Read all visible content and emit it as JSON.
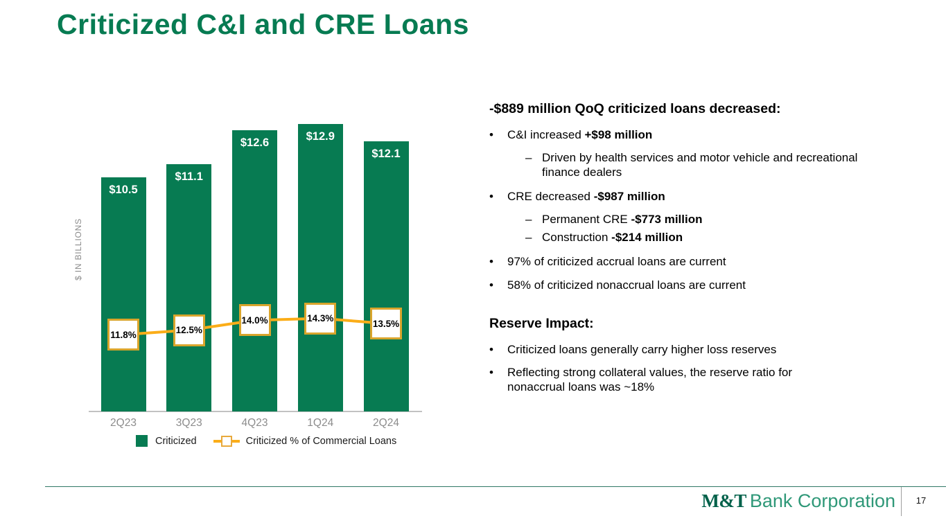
{
  "slide": {
    "title": "Criticized C&I and CRE Loans",
    "page_number": "17",
    "footer_logo": {
      "mt": "M&T",
      "rest": "Bank Corporation"
    }
  },
  "colors": {
    "brand_green": "#077B52",
    "gold_line": "#FBAD18",
    "gold_marker_border": "#D9A52C",
    "axis_gray": "#C2C2C2",
    "label_gray": "#8C8C8C",
    "footer_line_green": "#2F7865"
  },
  "chart_data": {
    "type": "bar",
    "subtype": "bar-with-line-overlay",
    "categories": [
      "2Q23",
      "3Q23",
      "4Q23",
      "1Q24",
      "2Q24"
    ],
    "series": [
      {
        "name": "Criticized",
        "type": "bar",
        "unit": "$ billions",
        "values": [
          10.5,
          11.1,
          12.6,
          12.9,
          12.1
        ],
        "labels": [
          "$10.5",
          "$11.1",
          "$12.6",
          "$12.9",
          "$12.1"
        ]
      },
      {
        "name": "Criticized % of Commercial Loans",
        "type": "line",
        "unit": "%",
        "values": [
          11.8,
          12.5,
          14.0,
          14.3,
          13.5
        ],
        "labels": [
          "11.8%",
          "12.5%",
          "14.0%",
          "14.3%",
          "13.5%"
        ]
      }
    ],
    "title": "",
    "xlabel": "",
    "ylabel": "$ IN BILLIONS",
    "ylim": [
      0,
      13.8
    ],
    "grid": false,
    "legend_position": "bottom"
  },
  "right_panel": {
    "sections": [
      {
        "heading": "-$889 million QoQ criticized loans decreased:",
        "items": [
          {
            "level": "bullet",
            "segments": [
              {
                "t": "C&I increased "
              },
              {
                "t": "+$98 million",
                "b": true
              }
            ]
          },
          {
            "level": "dash",
            "segments": [
              {
                "t": "Driven by health services and motor vehicle and recreational\nfinance dealers"
              }
            ]
          },
          {
            "level": "bullet",
            "segments": [
              {
                "t": "CRE decreased "
              },
              {
                "t": "-$987 million",
                "b": true
              }
            ]
          },
          {
            "level": "dash",
            "segments": [
              {
                "t": "Permanent CRE "
              },
              {
                "t": "-$773 million",
                "b": true
              }
            ]
          },
          {
            "level": "dash",
            "segments": [
              {
                "t": "Construction "
              },
              {
                "t": "-$214 million",
                "b": true
              }
            ]
          },
          {
            "level": "bullet",
            "segments": [
              {
                "t": "97% of criticized accrual loans are current"
              }
            ]
          },
          {
            "level": "bullet",
            "segments": [
              {
                "t": "58% of criticized nonaccrual loans are current"
              }
            ]
          }
        ]
      },
      {
        "heading": "Reserve Impact:",
        "items": [
          {
            "level": "bullet",
            "segments": [
              {
                "t": "Criticized loans generally carry higher loss reserves"
              }
            ]
          },
          {
            "level": "bullet",
            "segments": [
              {
                "t": "Reflecting strong collateral values, the reserve ratio for\nnonaccrual loans was ~18%"
              }
            ]
          }
        ]
      }
    ]
  }
}
